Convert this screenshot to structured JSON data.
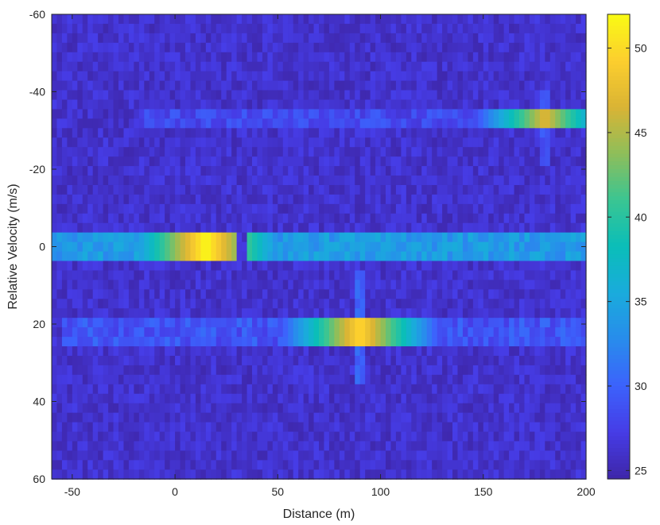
{
  "chart_data": {
    "type": "heatmap",
    "title": "",
    "xlabel": "Distance (m)",
    "ylabel": "Relative Velocity (m/s)",
    "xlim": [
      -60,
      200
    ],
    "ylim": [
      -60,
      60
    ],
    "y_direction": "reverse",
    "x_ticks": [
      -50,
      0,
      50,
      100,
      150,
      200
    ],
    "y_ticks": [
      -60,
      -40,
      -20,
      0,
      20,
      40,
      60
    ],
    "colormap": "parula",
    "clim": [
      24.5,
      52
    ],
    "colorbar_ticks": [
      25,
      30,
      35,
      40,
      45,
      50
    ],
    "colorbar_position": "right",
    "grid": false,
    "cell_size": {
      "distance_m": 2.5,
      "velocity_mps": 2.45
    },
    "background_level_db": 26,
    "features": [
      {
        "kind": "horizontal-band",
        "velocity": 0,
        "x_range": [
          -60,
          200
        ],
        "level": 34,
        "peaks": [
          {
            "distance": 15,
            "velocity": 0,
            "level": 52
          }
        ],
        "gaps": [
          [
            29,
            34
          ]
        ]
      },
      {
        "kind": "horizontal-band",
        "velocity": 22,
        "x_range": [
          -55,
          200
        ],
        "level": 29,
        "peaks": [
          {
            "distance": 90,
            "velocity": 22,
            "level": 50
          }
        ]
      },
      {
        "kind": "horizontal-band",
        "velocity": -33,
        "x_range": [
          -15,
          200
        ],
        "level": 28,
        "peaks": [
          {
            "distance": 180,
            "velocity": -33,
            "level": 47
          }
        ]
      },
      {
        "kind": "vertical-line",
        "distance": 90,
        "y_range": [
          5,
          35
        ],
        "level": 30
      },
      {
        "kind": "vertical-line",
        "distance": 180,
        "y_range": [
          -40,
          -20
        ],
        "level": 29
      }
    ]
  }
}
